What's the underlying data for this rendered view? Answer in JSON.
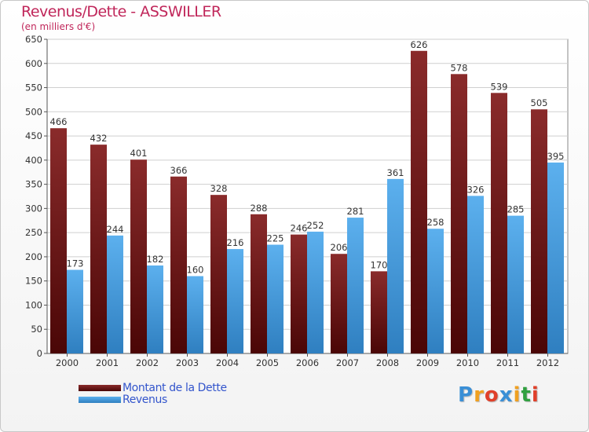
{
  "chart_data": {
    "type": "bar",
    "title": "Revenus/Dette - ASSWILLER",
    "subtitle": "(en milliers d'€)",
    "categories": [
      "2000",
      "2001",
      "2002",
      "2003",
      "2004",
      "2005",
      "2006",
      "2007",
      "2008",
      "2009",
      "2010",
      "2011",
      "2012"
    ],
    "series": [
      {
        "name": "Montant de la Dette",
        "color": "#7a1a1a",
        "values": [
          466,
          432,
          401,
          366,
          328,
          288,
          246,
          206,
          170,
          626,
          578,
          539,
          505
        ]
      },
      {
        "name": "Revenus",
        "color": "#4a9fe0",
        "values": [
          173,
          244,
          182,
          160,
          216,
          225,
          252,
          281,
          361,
          258,
          326,
          285,
          395
        ]
      }
    ],
    "ylim": [
      0,
      650
    ],
    "yticks": [
      0,
      50,
      100,
      150,
      200,
      250,
      300,
      350,
      400,
      450,
      500,
      550,
      600,
      650
    ],
    "grid": true,
    "legend": "bottom-left"
  },
  "logo": {
    "letters": [
      "P",
      "r",
      "o",
      "x",
      "i",
      "t",
      "i"
    ],
    "colors": [
      "#3a8fd6",
      "#f0a020",
      "#e0402a",
      "#3a8fd6",
      "#f0a020",
      "#30a040",
      "#e0402a"
    ]
  }
}
